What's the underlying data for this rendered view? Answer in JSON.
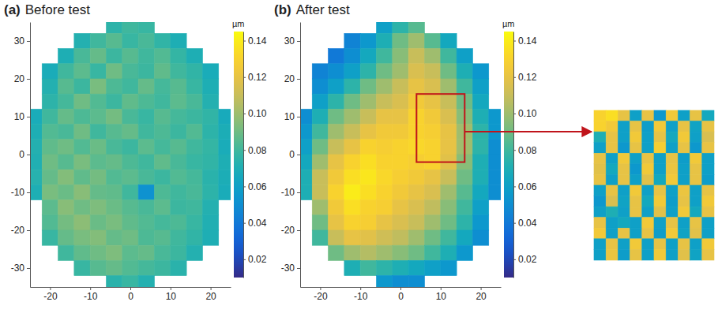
{
  "chart_data": [
    {
      "type": "heatmap",
      "panel_label": "(a)",
      "title": "Before test",
      "x": [
        -24,
        -20,
        -16,
        -12,
        -8,
        -4,
        0,
        4,
        8,
        12,
        16,
        20,
        24
      ],
      "y": [
        34,
        30,
        26,
        22,
        18,
        14,
        10,
        6,
        2,
        -2,
        -6,
        -10,
        -14,
        -18,
        -22,
        -26,
        -30,
        -34
      ],
      "cells": [
        [
          null,
          null,
          null,
          null,
          null,
          0.075,
          0.08,
          0.078,
          null,
          null,
          null,
          null,
          null
        ],
        [
          null,
          null,
          null,
          0.072,
          0.08,
          0.085,
          0.078,
          0.082,
          0.076,
          0.07,
          null,
          null,
          null
        ],
        [
          null,
          null,
          0.07,
          0.082,
          0.088,
          0.079,
          0.085,
          0.08,
          0.084,
          0.077,
          0.07,
          null,
          null
        ],
        [
          null,
          0.068,
          0.08,
          0.086,
          0.078,
          0.09,
          0.082,
          0.079,
          0.087,
          0.08,
          0.076,
          0.068,
          null
        ],
        [
          null,
          0.072,
          0.085,
          0.079,
          0.092,
          0.083,
          0.08,
          0.088,
          0.081,
          0.085,
          0.078,
          0.07,
          null
        ],
        [
          null,
          0.075,
          0.081,
          0.09,
          0.084,
          0.079,
          0.087,
          0.083,
          0.08,
          0.086,
          0.082,
          0.072,
          null
        ],
        [
          0.068,
          0.08,
          0.088,
          0.083,
          0.086,
          0.091,
          0.082,
          0.078,
          0.085,
          0.081,
          0.079,
          0.076,
          0.067
        ],
        [
          0.07,
          0.084,
          0.082,
          0.09,
          0.08,
          0.085,
          0.088,
          0.08,
          0.083,
          0.079,
          0.084,
          0.075,
          0.069
        ],
        [
          0.072,
          0.087,
          0.09,
          0.084,
          0.089,
          0.082,
          0.079,
          0.086,
          0.081,
          0.085,
          0.08,
          0.077,
          0.068
        ],
        [
          0.071,
          0.09,
          0.085,
          0.092,
          0.086,
          0.088,
          0.083,
          0.08,
          0.087,
          0.082,
          0.078,
          0.076,
          0.07
        ],
        [
          0.073,
          0.088,
          0.094,
          0.087,
          0.091,
          0.084,
          0.086,
          0.082,
          0.079,
          0.084,
          0.081,
          0.074,
          0.069
        ],
        [
          0.07,
          0.092,
          0.089,
          0.095,
          0.088,
          0.087,
          0.08,
          0.052,
          0.083,
          0.08,
          0.082,
          0.075,
          0.068
        ],
        [
          null,
          0.086,
          0.095,
          0.09,
          0.093,
          0.089,
          0.085,
          0.082,
          0.086,
          0.079,
          0.08,
          0.072,
          null
        ],
        [
          null,
          0.084,
          0.091,
          0.096,
          0.089,
          0.092,
          0.087,
          0.084,
          0.081,
          0.083,
          0.078,
          0.071,
          null
        ],
        [
          null,
          0.078,
          0.088,
          0.092,
          0.094,
          0.088,
          0.09,
          0.083,
          0.085,
          0.08,
          0.076,
          0.07,
          null
        ],
        [
          null,
          null,
          0.08,
          0.087,
          0.09,
          0.093,
          0.086,
          0.088,
          0.082,
          0.079,
          0.072,
          null,
          null
        ],
        [
          null,
          null,
          null,
          0.078,
          0.085,
          0.088,
          0.084,
          0.081,
          0.079,
          0.074,
          null,
          null,
          null
        ],
        [
          null,
          null,
          null,
          null,
          null,
          0.074,
          0.078,
          0.072,
          null,
          null,
          null,
          null,
          null
        ]
      ],
      "xlim": [
        -25,
        25
      ],
      "ylim": [
        -35,
        35
      ],
      "xticks": [
        -20,
        -10,
        0,
        10,
        20
      ],
      "yticks": [
        -30,
        -20,
        -10,
        0,
        10,
        20,
        30
      ],
      "colorbar": {
        "label": "µm",
        "range": [
          0.01,
          0.145
        ],
        "ticks": [
          0.02,
          0.04,
          0.06,
          0.08,
          {
            "value": 0.1,
            "label": "0.10"
          },
          0.12,
          0.14
        ]
      }
    },
    {
      "type": "heatmap",
      "panel_label": "(b)",
      "title": "After test",
      "x": [
        -24,
        -20,
        -16,
        -12,
        -8,
        -4,
        0,
        4,
        8,
        12,
        16,
        20,
        24
      ],
      "y": [
        34,
        30,
        26,
        22,
        18,
        14,
        10,
        6,
        2,
        -2,
        -6,
        -10,
        -14,
        -18,
        -22,
        -26,
        -30,
        -34
      ],
      "cells": [
        [
          null,
          null,
          null,
          null,
          null,
          0.06,
          0.075,
          0.085,
          null,
          null,
          null,
          null,
          null
        ],
        [
          null,
          null,
          null,
          0.045,
          0.055,
          0.07,
          0.09,
          0.1,
          0.085,
          0.065,
          null,
          null,
          null
        ],
        [
          null,
          null,
          0.04,
          0.05,
          0.065,
          0.08,
          0.095,
          0.11,
          0.1,
          0.08,
          0.06,
          null,
          null
        ],
        [
          null,
          0.045,
          0.05,
          0.06,
          0.075,
          0.09,
          0.1,
          0.115,
          0.11,
          0.09,
          0.07,
          0.055,
          null
        ],
        [
          null,
          0.05,
          0.06,
          0.075,
          0.09,
          0.1,
          0.11,
          0.12,
          0.115,
          0.1,
          0.08,
          0.06,
          null
        ],
        [
          null,
          0.06,
          0.075,
          0.09,
          0.1,
          0.11,
          0.115,
          0.125,
          0.12,
          0.11,
          0.09,
          0.065,
          null
        ],
        [
          0.05,
          0.07,
          0.09,
          0.1,
          0.11,
          0.12,
          0.12,
          0.13,
          0.125,
          0.115,
          0.095,
          0.07,
          0.055
        ],
        [
          0.055,
          0.08,
          0.1,
          0.11,
          0.12,
          0.125,
          0.125,
          0.13,
          0.128,
          0.12,
          0.1,
          0.075,
          0.055
        ],
        [
          0.06,
          0.09,
          0.11,
          0.12,
          0.13,
          0.128,
          0.13,
          0.132,
          0.13,
          0.12,
          0.1,
          0.075,
          0.05
        ],
        [
          0.065,
          0.1,
          0.12,
          0.13,
          0.135,
          0.13,
          0.13,
          0.128,
          0.13,
          0.118,
          0.095,
          0.07,
          0.05
        ],
        [
          0.07,
          0.11,
          0.125,
          0.135,
          0.138,
          0.132,
          0.128,
          0.125,
          0.12,
          0.11,
          0.09,
          0.07,
          0.05
        ],
        [
          0.07,
          0.11,
          0.13,
          0.14,
          0.135,
          0.13,
          0.125,
          0.12,
          0.115,
          0.1,
          0.085,
          0.065,
          0.05
        ],
        [
          null,
          0.1,
          0.125,
          0.135,
          0.13,
          0.128,
          0.12,
          0.115,
          0.108,
          0.095,
          0.08,
          0.06,
          null
        ],
        [
          null,
          0.09,
          0.12,
          0.13,
          0.128,
          0.12,
          0.115,
          0.11,
          0.1,
          0.09,
          0.075,
          0.055,
          null
        ],
        [
          null,
          0.08,
          0.11,
          0.12,
          0.118,
          0.112,
          0.108,
          0.1,
          0.09,
          0.08,
          0.065,
          0.05,
          null
        ],
        [
          null,
          null,
          0.09,
          0.1,
          0.105,
          0.1,
          0.095,
          0.09,
          0.08,
          0.07,
          0.055,
          null,
          null
        ],
        [
          null,
          null,
          null,
          0.07,
          0.08,
          0.075,
          0.07,
          0.065,
          0.06,
          0.055,
          null,
          null,
          null
        ],
        [
          null,
          null,
          null,
          null,
          null,
          0.055,
          0.05,
          0.05,
          null,
          null,
          null,
          null,
          null
        ]
      ],
      "xlim": [
        -25,
        25
      ],
      "ylim": [
        -35,
        35
      ],
      "xticks": [
        -20,
        -10,
        0,
        10,
        20
      ],
      "yticks": [
        -30,
        -20,
        -10,
        0,
        10,
        20,
        30
      ],
      "colorbar": {
        "label": "µm",
        "range": [
          0.01,
          0.145
        ],
        "ticks": [
          0.02,
          0.04,
          0.06,
          0.08,
          {
            "value": 0.1,
            "label": "0.10"
          },
          0.12,
          0.14
        ]
      },
      "zoom_box": {
        "x": [
          4,
          16
        ],
        "y": [
          -2,
          16
        ]
      },
      "inset": {
        "cells": [
          [
            0.13,
            0.135,
            0.12,
            0.06,
            0.12,
            0.055,
            0.125,
            0.06,
            0.12,
            0.065
          ],
          [
            0.13,
            0.125,
            0.06,
            0.12,
            0.058,
            0.125,
            0.06,
            0.12,
            0.062,
            0.12
          ],
          [
            0.07,
            0.12,
            0.06,
            0.125,
            0.06,
            0.12,
            0.065,
            0.125,
            0.06,
            0.115
          ],
          [
            0.06,
            0.12,
            0.055,
            0.12,
            0.06,
            0.128,
            0.06,
            0.12,
            0.055,
            0.12
          ],
          [
            0.12,
            0.06,
            0.125,
            0.06,
            0.12,
            0.06,
            0.12,
            0.058,
            0.125,
            0.06
          ],
          [
            0.118,
            0.065,
            0.12,
            0.055,
            0.125,
            0.06,
            0.122,
            0.06,
            0.12,
            0.06
          ],
          [
            0.12,
            0.06,
            0.12,
            0.06,
            0.118,
            0.065,
            0.125,
            0.06,
            0.12,
            0.058
          ],
          [
            0.06,
            0.12,
            0.06,
            0.125,
            0.06,
            0.12,
            0.06,
            0.122,
            0.06,
            0.12
          ],
          [
            0.055,
            0.115,
            0.062,
            0.12,
            0.065,
            0.125,
            0.058,
            0.12,
            0.06,
            0.125
          ],
          [
            0.06,
            0.07,
            0.06,
            0.12,
            0.06,
            0.118,
            0.06,
            0.125,
            0.065,
            0.12
          ],
          [
            0.12,
            0.06,
            0.065,
            0.06,
            0.125,
            0.06,
            0.12,
            0.06,
            0.12,
            0.06
          ],
          [
            0.125,
            0.06,
            0.12,
            0.06,
            0.12,
            0.058,
            0.125,
            0.062,
            0.118,
            0.06
          ],
          [
            0.06,
            0.12,
            0.06,
            0.125,
            0.06,
            0.12,
            0.06,
            0.12,
            0.06,
            0.125
          ],
          [
            0.06,
            0.122,
            0.058,
            0.12,
            0.06,
            0.125,
            0.06,
            0.118,
            0.062,
            0.12
          ]
        ]
      }
    }
  ]
}
